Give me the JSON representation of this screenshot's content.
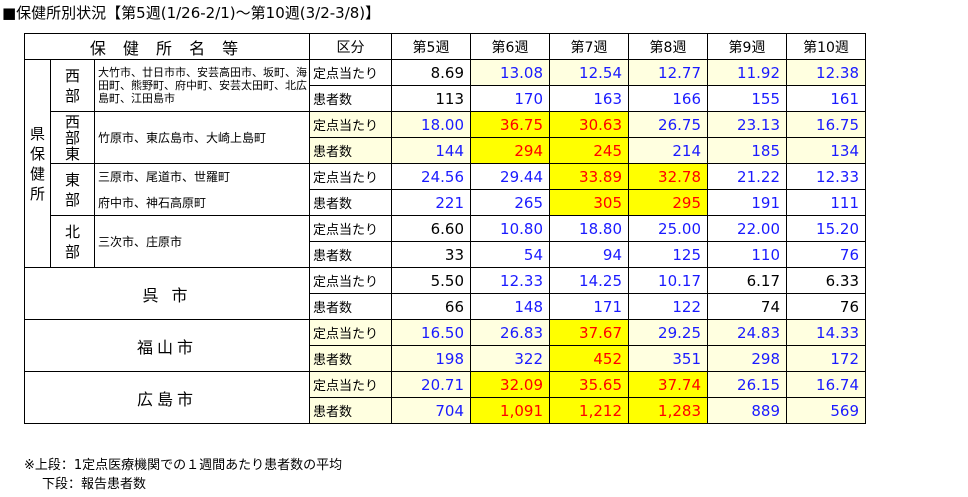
{
  "title": "■保健所別状況【第5週(1/26-2/1)～第10週(3/2-3/8)】",
  "header": {
    "area": "保 健 所 名 等",
    "kubun": "区分",
    "weeks": [
      "第5週",
      "第6週",
      "第7週",
      "第8週",
      "第9週",
      "第10週"
    ]
  },
  "labels": {
    "teiten": "定点当たり",
    "kanja": "患者数"
  },
  "ken": "県保健所",
  "sections": {
    "west": {
      "name": "西部",
      "areas": "大竹市、廿日市市、安芸高田市、坂町、海田町、熊野町、府中町、安芸太田町、北広島町、江田島市"
    },
    "westeast": {
      "name": "西部東",
      "areas": "竹原市、東広島市、大崎上島町"
    },
    "east": {
      "name": "東部",
      "areas1": "三原市、尾道市、世羅町",
      "areas2": "府中市、神石高原町"
    },
    "north": {
      "name": "北部",
      "areas": "三次市、庄原市"
    },
    "kure": {
      "name": "呉 市"
    },
    "fukuyama": {
      "name": "福山市"
    },
    "hiroshima": {
      "name": "広島市"
    }
  },
  "rows": {
    "west_t": [
      "8.69",
      "13.08",
      "12.54",
      "12.77",
      "11.92",
      "12.38"
    ],
    "west_k": [
      "113",
      "170",
      "163",
      "166",
      "155",
      "161"
    ],
    "westeast_t": [
      "18.00",
      "36.75",
      "30.63",
      "26.75",
      "23.13",
      "16.75"
    ],
    "westeast_k": [
      "144",
      "294",
      "245",
      "214",
      "185",
      "134"
    ],
    "east_t": [
      "24.56",
      "29.44",
      "33.89",
      "32.78",
      "21.22",
      "12.33"
    ],
    "east_k": [
      "221",
      "265",
      "305",
      "295",
      "191",
      "111"
    ],
    "north_t": [
      "6.60",
      "10.80",
      "18.80",
      "25.00",
      "22.00",
      "15.20"
    ],
    "north_k": [
      "33",
      "54",
      "94",
      "125",
      "110",
      "76"
    ],
    "kure_t": [
      "5.50",
      "12.33",
      "14.25",
      "10.17",
      "6.17",
      "6.33"
    ],
    "kure_k": [
      "66",
      "148",
      "171",
      "122",
      "74",
      "76"
    ],
    "fukuyama_t": [
      "16.50",
      "26.83",
      "37.67",
      "29.25",
      "24.83",
      "14.33"
    ],
    "fukuyama_k": [
      "198",
      "322",
      "452",
      "351",
      "298",
      "172"
    ],
    "hiroshima_t": [
      "20.71",
      "32.09",
      "35.65",
      "37.74",
      "26.15",
      "16.74"
    ],
    "hiroshima_k": [
      "704",
      "1,091",
      "1,212",
      "1,283",
      "889",
      "569"
    ]
  },
  "colors": {
    "highlight": "#ffff00",
    "light": "#ffffe0",
    "red": "#ff0000",
    "blue": "#1a1aff"
  },
  "notes": {
    "line1": "※上段：1定点医療機関での１週間あたり患者数の平均",
    "line2": "下段：報告患者数"
  }
}
